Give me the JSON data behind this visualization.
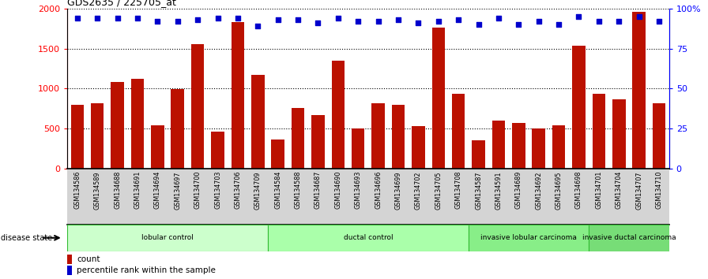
{
  "title": "GDS2635 / 225705_at",
  "samples": [
    "GSM134586",
    "GSM134589",
    "GSM134688",
    "GSM134691",
    "GSM134694",
    "GSM134697",
    "GSM134700",
    "GSM134703",
    "GSM134706",
    "GSM134709",
    "GSM134584",
    "GSM134588",
    "GSM134687",
    "GSM134690",
    "GSM134693",
    "GSM134696",
    "GSM134699",
    "GSM134702",
    "GSM134705",
    "GSM134708",
    "GSM134587",
    "GSM134591",
    "GSM134689",
    "GSM134692",
    "GSM134695",
    "GSM134698",
    "GSM134701",
    "GSM134704",
    "GSM134707",
    "GSM134710"
  ],
  "counts": [
    800,
    820,
    1080,
    1120,
    540,
    990,
    1550,
    460,
    1830,
    1170,
    370,
    760,
    670,
    1350,
    500,
    820,
    800,
    530,
    1760,
    940,
    360,
    600,
    570,
    500,
    540,
    1530,
    940,
    870,
    1960,
    820
  ],
  "percentile_ranks": [
    94,
    94,
    94,
    94,
    92,
    92,
    93,
    94,
    94,
    89,
    93,
    93,
    91,
    94,
    92,
    92,
    93,
    91,
    92,
    93,
    90,
    94,
    90,
    92,
    90,
    95,
    92,
    92,
    95,
    92
  ],
  "groups": [
    {
      "label": "lobular control",
      "start": 0,
      "end": 9,
      "color": "#ccffcc"
    },
    {
      "label": "ductal control",
      "start": 10,
      "end": 19,
      "color": "#aaffaa"
    },
    {
      "label": "invasive lobular carcinoma",
      "start": 20,
      "end": 25,
      "color": "#88ee88"
    },
    {
      "label": "invasive ductal carcinoma",
      "start": 26,
      "end": 29,
      "color": "#77dd77"
    }
  ],
  "bar_color": "#bb1100",
  "dot_color": "#0000cc",
  "ylim_left": [
    0,
    2000
  ],
  "ylim_right": [
    0,
    100
  ],
  "yticks_left": [
    0,
    500,
    1000,
    1500,
    2000
  ],
  "yticks_right": [
    0,
    25,
    50,
    75,
    100
  ],
  "ytick_labels_right": [
    "0",
    "25",
    "50",
    "75",
    "100%"
  ],
  "label_bg_color": "#d4d4d4",
  "disease_state_label": "disease state",
  "legend_count_label": "count",
  "legend_percentile_label": "percentile rank within the sample",
  "group_border_color": "#33bb33"
}
